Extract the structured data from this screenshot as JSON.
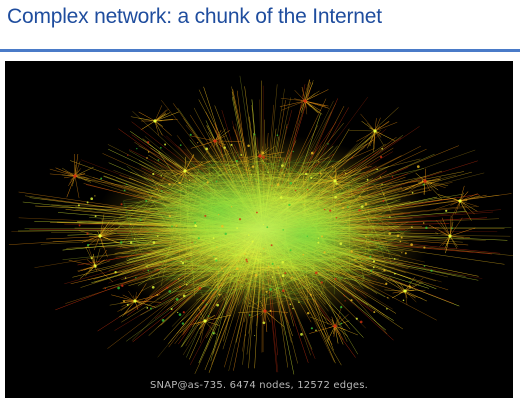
{
  "slide": {
    "title": "Complex network: a chunk of the Internet"
  },
  "figure": {
    "caption": "SNAP@as-735. 6474 nodes, 12572 edges.",
    "background_color": "#000000",
    "colors": {
      "core": "#e8ff3a",
      "inner": "#b8f02a",
      "mid": "#f0c020",
      "edge": "#e08a10",
      "green": "#38c838",
      "red": "#d03010"
    }
  }
}
